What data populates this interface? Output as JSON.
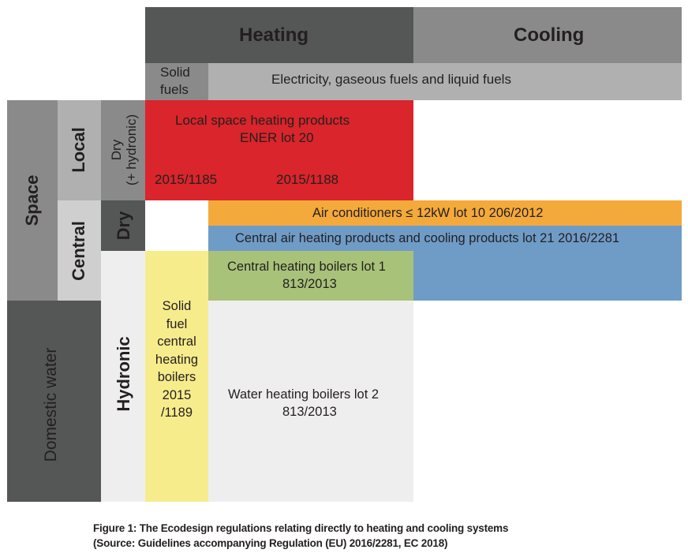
{
  "headers": {
    "heating": "Heating",
    "cooling": "Cooling",
    "solid_fuels": [
      "Solid",
      "fuels"
    ],
    "electricity": "Electricity, gaseous fuels and liquid fuels"
  },
  "rows": {
    "space": "Space",
    "local": "Local",
    "central": "Central",
    "domestic_water": "Domestic water",
    "dry_hydronic": [
      "Dry",
      "(+ hydronic)"
    ],
    "dry": "Dry",
    "hydronic": "Hydronic"
  },
  "cells": {
    "local_space": [
      "Local space heating products",
      "ENER lot 20"
    ],
    "reg_2015_1185": "2015/1185",
    "reg_2015_1188": "2015/1188",
    "air_conditioners": "Air conditioners ≤ 12kW lot 10 206/2012",
    "central_air": "Central air heating products and cooling products lot 21 2016/2281",
    "central_boilers": [
      "Central heating boilers lot 1",
      "813/2013"
    ],
    "solid_fuel_boilers": [
      "Solid",
      "fuel",
      "central",
      "heating",
      "boilers",
      "2015",
      "/1189"
    ],
    "water_heating": [
      "Water heating boilers lot 2",
      "813/2013"
    ]
  },
  "caption": [
    "Figure 1: The Ecodesign regulations relating directly to heating and cooling systems",
    "(Source: Guidelines accompanying Regulation (EU) 2016/2281, EC 2018)"
  ],
  "colors": {
    "dark_grey": "#555656",
    "mid_grey": "#8a8a8a",
    "light_grey": "#b0b0b0",
    "pale_grey": "#cfcfcf",
    "red": "#d9252b",
    "orange": "#f4a93b",
    "blue": "#6f9cc7",
    "green": "#a9c27a",
    "yellow": "#f7ec8c",
    "background": "#efeeee"
  }
}
